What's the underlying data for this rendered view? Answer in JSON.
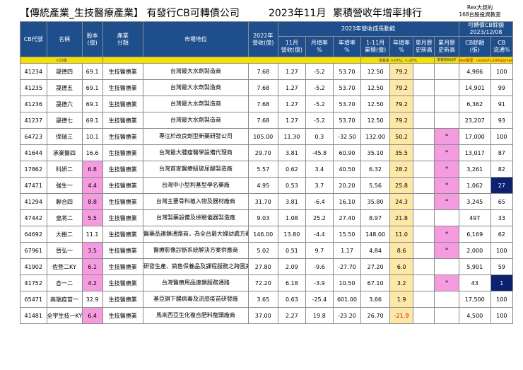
{
  "header": {
    "title": "【傳統產業_生技醫療產業】 有發行CB可轉債公司",
    "date": "2023年11月",
    "rank_title": "累積營收年增率排行",
    "brand_line1": "Rex大叔的",
    "brand_line2": "168台股投資教室"
  },
  "columns": {
    "code": "CB代號",
    "name": "名稱",
    "capital": "股本\n(億)",
    "industry": "產業\n分類",
    "market": "市場地位",
    "rev2022": "2022年\n營收(億)",
    "growth_group": "2023年營收成長動能",
    "nov_rev": "11月\n營收(億)",
    "mom": "月增率\n%",
    "yoy": "年增率\n%",
    "cum_rev": "1-11月\n累積(億)",
    "cum_yoy": "年增率\n%",
    "month_high": "單月歷\n史新高",
    "cum_high": "累月歷\n史新高",
    "cb_group": "可轉債CB餘額\n2023/12/08",
    "cb_balance": "CB餘額\n(張)",
    "cb_ratio": "CB\n流通%"
  },
  "legend": {
    "capital_note": "<10億",
    "growth_note": "增長率 >20%；<-20%",
    "cum_note": "累積營收排序",
    "credit": "Rex整理：rexdashu168@gmail.com"
  },
  "colors": {
    "header_bg": "#1f4e8c",
    "legend_bg": "#f5e100",
    "growth_bg": "#fde8a8",
    "pink": "#f59ce0",
    "navy": "#0c2270",
    "negative": "#d00000"
  },
  "rows": [
    {
      "code": "41234",
      "name": "晟德四",
      "capital": "69.1",
      "industry": "生技醫療業",
      "market": "台灣最大水劑製造商",
      "rev2022": "7.68",
      "nov": "1.27",
      "mom": "-5.2",
      "yoy": "53.70",
      "cum": "12.50",
      "cumyoy": "79.2",
      "mh": "",
      "ch": "",
      "cb": "4,986",
      "ratio": "100"
    },
    {
      "code": "41235",
      "name": "晟德五",
      "capital": "69.1",
      "industry": "生技醫療業",
      "market": "台灣最大水劑製造商",
      "rev2022": "7.68",
      "nov": "1.27",
      "mom": "-5.2",
      "yoy": "53.70",
      "cum": "12.50",
      "cumyoy": "79.2",
      "mh": "",
      "ch": "",
      "cb": "14,901",
      "ratio": "99"
    },
    {
      "code": "41236",
      "name": "晟德六",
      "capital": "69.1",
      "industry": "生技醫療業",
      "market": "台灣最大水劑製造商",
      "rev2022": "7.68",
      "nov": "1.27",
      "mom": "-5.2",
      "yoy": "53.70",
      "cum": "12.50",
      "cumyoy": "79.2",
      "mh": "",
      "ch": "",
      "cb": "6,362",
      "ratio": "91"
    },
    {
      "code": "41237",
      "name": "晟德七",
      "capital": "69.1",
      "industry": "生技醫療業",
      "market": "台灣最大水劑製造商",
      "rev2022": "7.68",
      "nov": "1.27",
      "mom": "-5.2",
      "yoy": "53.70",
      "cum": "12.50",
      "cumyoy": "79.2",
      "mh": "",
      "ch": "",
      "cb": "23,207",
      "ratio": "93"
    },
    {
      "code": "64723",
      "name": "保瑞三",
      "capital": "10.1",
      "industry": "生技醫療業",
      "market": "專注於改良劑型新藥研發公司",
      "rev2022": "105.00",
      "nov": "11.30",
      "mom": "0.3",
      "yoy": "-32.50",
      "cum": "132.00",
      "cumyoy": "50.2",
      "mh": "",
      "ch": "*",
      "cb": "17,000",
      "ratio": "100"
    },
    {
      "code": "41644",
      "name": "承業醫四",
      "capital": "16.6",
      "industry": "生技醫療業",
      "market": "台灣最大腫瘤醫學設備代理商",
      "rev2022": "29.70",
      "nov": "3.81",
      "mom": "-45.8",
      "yoy": "60.90",
      "cum": "35.10",
      "cumyoy": "35.5",
      "mh": "",
      "ch": "*",
      "cb": "13,017",
      "ratio": "87"
    },
    {
      "code": "17862",
      "name": "科妍二",
      "capital": "6.8",
      "industry": "生技醫療業",
      "market": "台灣首家醫療級玻尿酸製造廠",
      "rev2022": "5.57",
      "nov": "0.62",
      "mom": "3.4",
      "yoy": "40.50",
      "cum": "6.32",
      "cumyoy": "28.2",
      "mh": "",
      "ch": "*",
      "cb": "3,261",
      "ratio": "82"
    },
    {
      "code": "47471",
      "name": "強生一",
      "capital": "4.4",
      "industry": "生技醫療業",
      "market": "台灣中小型利基型學名藥廠",
      "rev2022": "4.95",
      "nov": "0.53",
      "mom": "3.7",
      "yoy": "20.20",
      "cum": "5.56",
      "cumyoy": "25.8",
      "mh": "",
      "ch": "*",
      "cb": "1,062",
      "ratio": "27"
    },
    {
      "code": "41294",
      "name": "聯合四",
      "capital": "8.8",
      "industry": "生技醫療業",
      "market": "台灣主要骨科植入物及器材廠商",
      "rev2022": "31.70",
      "nov": "3.81",
      "mom": "-6.4",
      "yoy": "16.10",
      "cum": "35.80",
      "cumyoy": "24.3",
      "mh": "",
      "ch": "*",
      "cb": "3,245",
      "ratio": "65"
    },
    {
      "code": "47442",
      "name": "皇將二",
      "capital": "5.5",
      "industry": "生技醫療業",
      "market": "台灣製藥設備及檢驗儀器製造廠",
      "rev2022": "9.03",
      "nov": "1.08",
      "mom": "25.2",
      "yoy": "27.40",
      "cum": "8.97",
      "cumyoy": "21.8",
      "mh": "",
      "ch": "",
      "cb": "497",
      "ratio": "33"
    },
    {
      "code": "64692",
      "name": "大樹二",
      "capital": "11.1",
      "industry": "生技醫療業",
      "market": "醫藥品連鎖通路商，為全台最大婦幼處方藥局",
      "rev2022": "146.00",
      "nov": "13.80",
      "mom": "-4.4",
      "yoy": "15.50",
      "cum": "148.00",
      "cumyoy": "11.0",
      "mh": "",
      "ch": "*",
      "cb": "6,169",
      "ratio": "62"
    },
    {
      "code": "67961",
      "name": "晉弘一",
      "capital": "3.5",
      "industry": "生技醫療業",
      "market": "醫療影像診斷系統解決方案供應商",
      "rev2022": "5.02",
      "nov": "0.51",
      "mom": "9.7",
      "yoy": "1.17",
      "cum": "4.84",
      "cumyoy": "8.6",
      "mh": "",
      "ch": "*",
      "cb": "2,000",
      "ratio": "100"
    },
    {
      "code": "41902",
      "name": "佐登二KY",
      "capital": "6.1",
      "industry": "生技醫療業",
      "market": "研發生產、銷售保養品及課程服務之跨國美容美體集團",
      "rev2022": "27.80",
      "nov": "2.09",
      "mom": "-9.6",
      "yoy": "-27.70",
      "cum": "27.20",
      "cumyoy": "6.0",
      "mh": "",
      "ch": "",
      "cb": "5,901",
      "ratio": "59"
    },
    {
      "code": "41752",
      "name": "杏一二",
      "capital": "4.2",
      "industry": "生技醫療業",
      "market": "台灣醫療用品連鎖服務通路",
      "rev2022": "72.20",
      "nov": "6.18",
      "mom": "-3.9",
      "yoy": "10.50",
      "cum": "67.10",
      "cumyoy": "3.2",
      "mh": "",
      "ch": "*",
      "cb": "43",
      "ratio": "1"
    },
    {
      "code": "65471",
      "name": "高端疫苗一",
      "capital": "32.9",
      "industry": "生技醫療業",
      "market": "基亞旗下腸病毒及流感疫苗研發廠",
      "rev2022": "3.65",
      "nov": "0.63",
      "mom": "-25.4",
      "yoy": "601.00",
      "cum": "3.66",
      "cumyoy": "1.9",
      "mh": "",
      "ch": "",
      "cb": "17,500",
      "ratio": "100"
    },
    {
      "code": "41481",
      "name": "全宇生技一KY",
      "capital": "6.4",
      "industry": "生技醫療業",
      "market": "馬來西亞生化複合肥料龍頭廠商",
      "rev2022": "37.00",
      "nov": "2.27",
      "mom": "19.8",
      "yoy": "-23.20",
      "cum": "26.70",
      "cumyoy": "-21.9",
      "mh": "",
      "ch": "",
      "cb": "4,500",
      "ratio": "100"
    }
  ]
}
